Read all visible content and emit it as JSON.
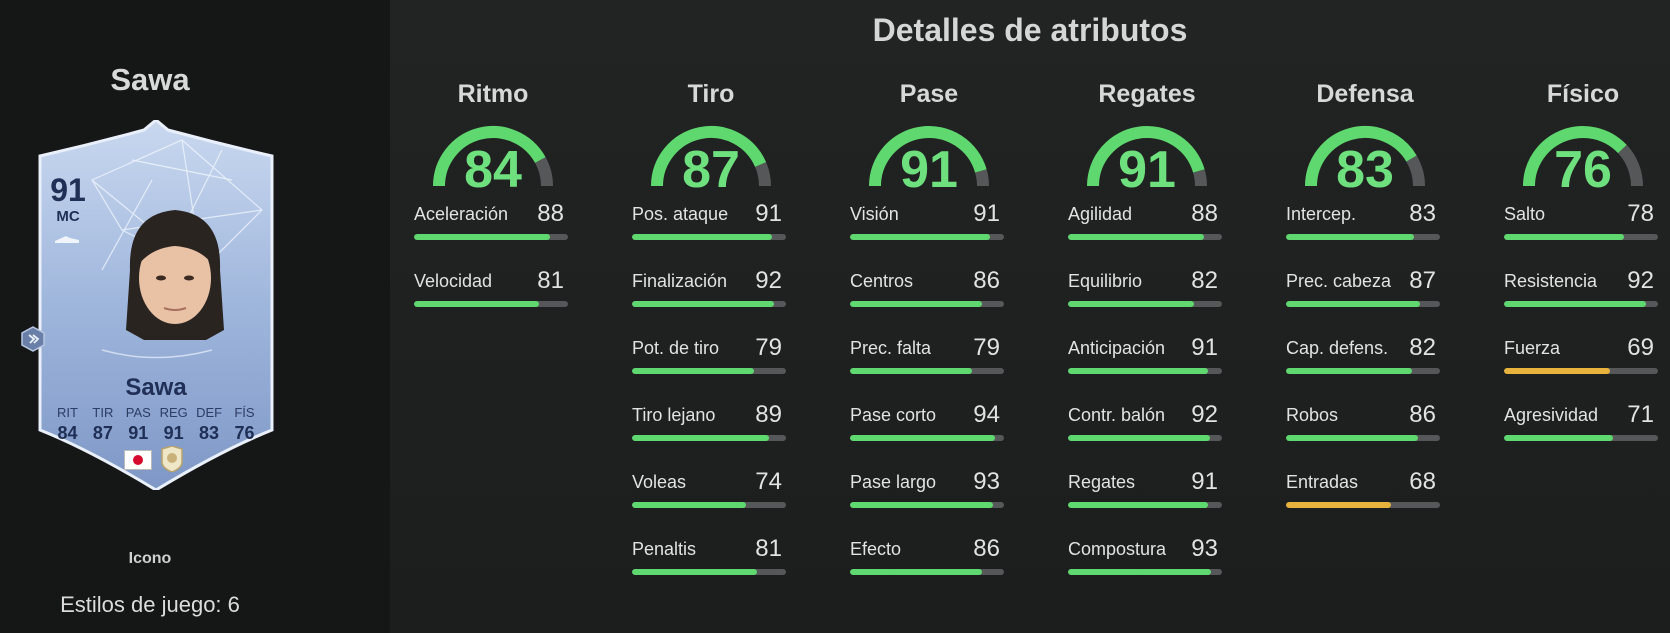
{
  "player": {
    "name": "Sawa",
    "card_rating": "91",
    "card_position": "MC",
    "card_name": "Sawa",
    "card_stat_labels": [
      "RIT",
      "TIR",
      "PAS",
      "REG",
      "DEF",
      "FÍS"
    ],
    "card_stat_values": [
      "84",
      "87",
      "91",
      "91",
      "83",
      "76"
    ],
    "type_label": "Icono",
    "playstyles_label": "Estilos de juego: 6"
  },
  "title": "Detalles de atributos",
  "colors": {
    "green": "#5fd86f",
    "yellow": "#e8b33c",
    "track": "#555758"
  },
  "categories": [
    {
      "name": "Ritmo",
      "value": 84,
      "value_label": "84",
      "stats": [
        {
          "label": "Aceleración",
          "value": 88,
          "value_label": "88"
        },
        {
          "label": "Velocidad",
          "value": 81,
          "value_label": "81"
        }
      ]
    },
    {
      "name": "Tiro",
      "value": 87,
      "value_label": "87",
      "stats": [
        {
          "label": "Pos. ataque",
          "value": 91,
          "value_label": "91"
        },
        {
          "label": "Finalización",
          "value": 92,
          "value_label": "92"
        },
        {
          "label": "Pot. de tiro",
          "value": 79,
          "value_label": "79"
        },
        {
          "label": "Tiro lejano",
          "value": 89,
          "value_label": "89"
        },
        {
          "label": "Voleas",
          "value": 74,
          "value_label": "74"
        },
        {
          "label": "Penaltis",
          "value": 81,
          "value_label": "81"
        }
      ]
    },
    {
      "name": "Pase",
      "value": 91,
      "value_label": "91",
      "stats": [
        {
          "label": "Visión",
          "value": 91,
          "value_label": "91"
        },
        {
          "label": "Centros",
          "value": 86,
          "value_label": "86"
        },
        {
          "label": "Prec. falta",
          "value": 79,
          "value_label": "79"
        },
        {
          "label": "Pase corto",
          "value": 94,
          "value_label": "94"
        },
        {
          "label": "Pase largo",
          "value": 93,
          "value_label": "93"
        },
        {
          "label": "Efecto",
          "value": 86,
          "value_label": "86"
        }
      ]
    },
    {
      "name": "Regates",
      "value": 91,
      "value_label": "91",
      "stats": [
        {
          "label": "Agilidad",
          "value": 88,
          "value_label": "88"
        },
        {
          "label": "Equilibrio",
          "value": 82,
          "value_label": "82"
        },
        {
          "label": "Anticipación",
          "value": 91,
          "value_label": "91"
        },
        {
          "label": "Contr. balón",
          "value": 92,
          "value_label": "92"
        },
        {
          "label": "Regates",
          "value": 91,
          "value_label": "91"
        },
        {
          "label": "Compostura",
          "value": 93,
          "value_label": "93"
        }
      ]
    },
    {
      "name": "Defensa",
      "value": 83,
      "value_label": "83",
      "stats": [
        {
          "label": "Intercep.",
          "value": 83,
          "value_label": "83"
        },
        {
          "label": "Prec. cabeza",
          "value": 87,
          "value_label": "87"
        },
        {
          "label": "Cap. defens.",
          "value": 82,
          "value_label": "82"
        },
        {
          "label": "Robos",
          "value": 86,
          "value_label": "86"
        },
        {
          "label": "Entradas",
          "value": 68,
          "value_label": "68"
        }
      ]
    },
    {
      "name": "Físico",
      "value": 76,
      "value_label": "76",
      "stats": [
        {
          "label": "Salto",
          "value": 78,
          "value_label": "78"
        },
        {
          "label": "Resistencia",
          "value": 92,
          "value_label": "92"
        },
        {
          "label": "Fuerza",
          "value": 69,
          "value_label": "69"
        },
        {
          "label": "Agresividad",
          "value": 71,
          "value_label": "71"
        }
      ]
    }
  ]
}
